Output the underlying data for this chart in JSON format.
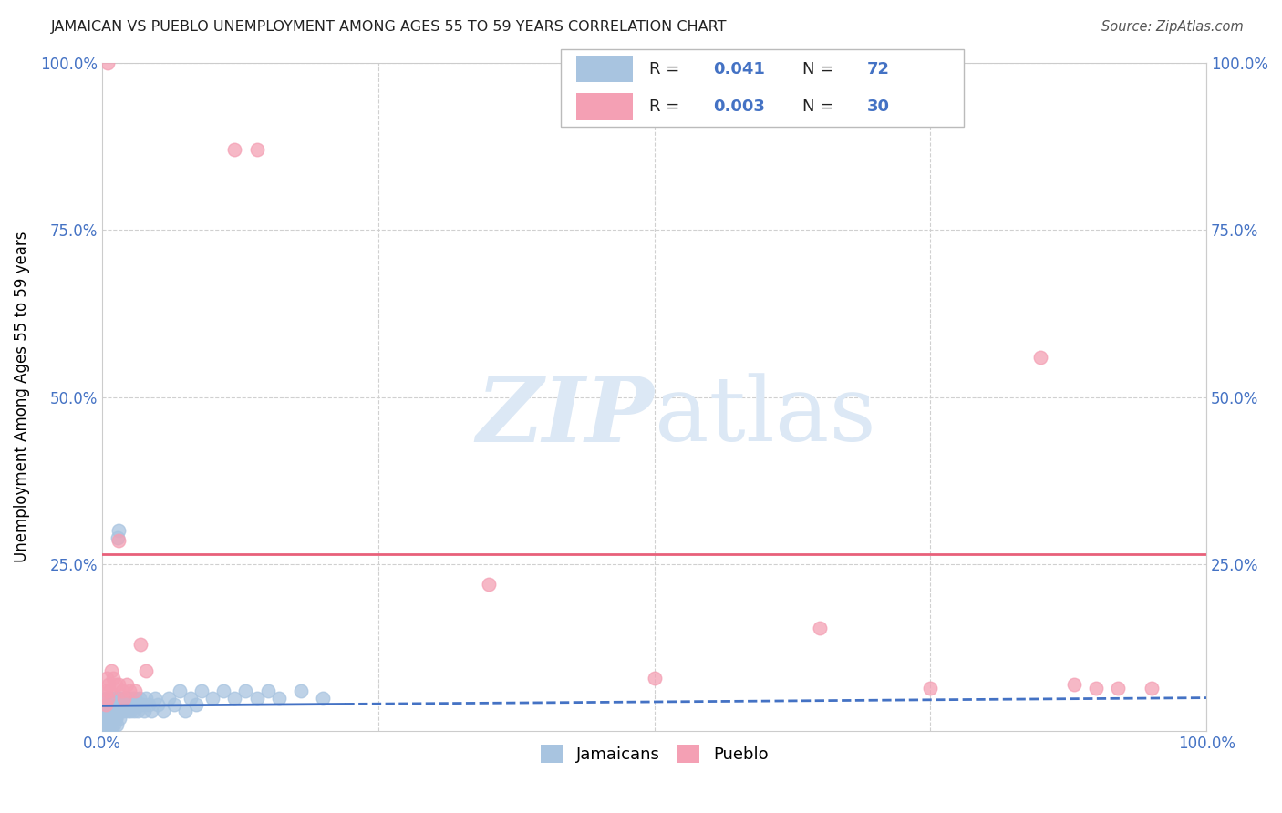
{
  "title": "JAMAICAN VS PUEBLO UNEMPLOYMENT AMONG AGES 55 TO 59 YEARS CORRELATION CHART",
  "source": "Source: ZipAtlas.com",
  "ylabel": "Unemployment Among Ages 55 to 59 years",
  "xlim": [
    0.0,
    1.0
  ],
  "ylim": [
    0.0,
    1.0
  ],
  "jamaicans_color": "#a8c4e0",
  "pueblo_color": "#f4a0b4",
  "jamaicans_R": 0.041,
  "jamaicans_N": 72,
  "pueblo_R": 0.003,
  "pueblo_N": 30,
  "jamaicans_line_color": "#4472c4",
  "pueblo_line_color": "#e8607a",
  "jamaicans_line_solid_end": 0.22,
  "jamaicans_intercept": 0.038,
  "jamaicans_slope": 0.012,
  "pueblo_intercept": 0.265,
  "pueblo_slope": 0.0,
  "watermark_color": "#dce8f5",
  "jamaicans_x": [
    0.002,
    0.003,
    0.004,
    0.005,
    0.006,
    0.007,
    0.008,
    0.009,
    0.01,
    0.011,
    0.012,
    0.013,
    0.014,
    0.015,
    0.016,
    0.017,
    0.018,
    0.019,
    0.02,
    0.021,
    0.022,
    0.023,
    0.024,
    0.025,
    0.026,
    0.027,
    0.028,
    0.029,
    0.03,
    0.031,
    0.032,
    0.034,
    0.036,
    0.038,
    0.04,
    0.042,
    0.045,
    0.048,
    0.05,
    0.055,
    0.06,
    0.065,
    0.07,
    0.075,
    0.08,
    0.085,
    0.09,
    0.1,
    0.11,
    0.12,
    0.13,
    0.14,
    0.15,
    0.16,
    0.18,
    0.2,
    0.001,
    0.002,
    0.003,
    0.004,
    0.005,
    0.006,
    0.007,
    0.008,
    0.009,
    0.01,
    0.011,
    0.012,
    0.013,
    0.014,
    0.015,
    0.016
  ],
  "jamaicans_y": [
    0.04,
    0.03,
    0.05,
    0.02,
    0.04,
    0.03,
    0.05,
    0.04,
    0.03,
    0.05,
    0.02,
    0.04,
    0.03,
    0.05,
    0.04,
    0.03,
    0.05,
    0.04,
    0.03,
    0.05,
    0.04,
    0.03,
    0.05,
    0.04,
    0.03,
    0.05,
    0.04,
    0.03,
    0.05,
    0.04,
    0.03,
    0.05,
    0.04,
    0.03,
    0.05,
    0.04,
    0.03,
    0.05,
    0.04,
    0.03,
    0.05,
    0.04,
    0.06,
    0.03,
    0.05,
    0.04,
    0.06,
    0.05,
    0.06,
    0.05,
    0.06,
    0.05,
    0.06,
    0.05,
    0.06,
    0.05,
    0.01,
    0.02,
    0.01,
    0.02,
    0.01,
    0.02,
    0.01,
    0.02,
    0.01,
    0.02,
    0.01,
    0.02,
    0.01,
    0.29,
    0.3,
    0.02
  ],
  "pueblo_x": [
    0.003,
    0.004,
    0.005,
    0.006,
    0.008,
    0.01,
    0.012,
    0.015,
    0.018,
    0.022,
    0.025,
    0.035,
    0.04,
    0.12,
    0.14,
    0.35,
    0.5,
    0.65,
    0.75,
    0.85,
    0.88,
    0.9,
    0.92,
    0.95,
    0.003,
    0.005,
    0.007,
    0.015,
    0.02,
    0.03
  ],
  "pueblo_y": [
    0.06,
    0.08,
    1.0,
    0.07,
    0.09,
    0.08,
    0.07,
    0.285,
    0.06,
    0.07,
    0.06,
    0.13,
    0.09,
    0.87,
    0.87,
    0.22,
    0.08,
    0.155,
    0.065,
    0.56,
    0.07,
    0.065,
    0.065,
    0.065,
    0.04,
    0.05,
    0.06,
    0.07,
    0.05,
    0.06
  ]
}
